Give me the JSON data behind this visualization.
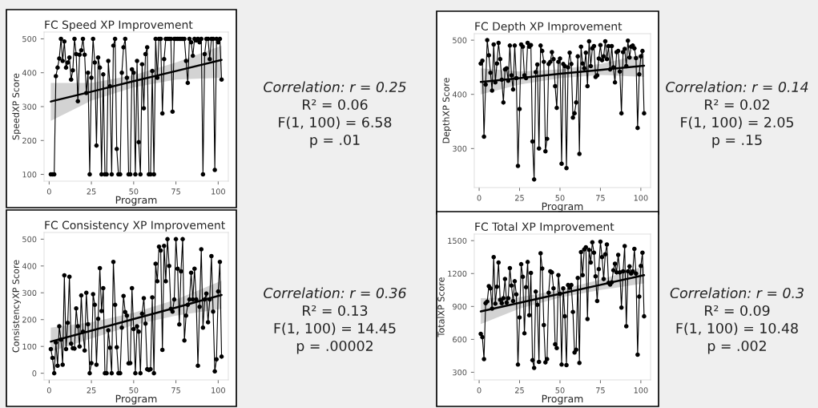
{
  "chart_data": [
    {
      "type": "line",
      "title": "FC Speed XP Improvement",
      "xlabel": "Program",
      "ylabel": "SpeedXP Score",
      "xlim": [
        -3,
        106
      ],
      "ylim": [
        80,
        520
      ],
      "xticks": [
        0,
        25,
        50,
        75,
        100
      ],
      "yticks": [
        100,
        200,
        300,
        400,
        500
      ],
      "grid": false,
      "legend": false,
      "annotations": [
        "Correlation: r = 0.25",
        "R² = 0.06",
        "F(1, 100) = 6.58",
        "p = .01"
      ],
      "series": [
        {
          "color": "#000000",
          "marker": "circle",
          "x": [
            1,
            2,
            3,
            4,
            5,
            6,
            7,
            8,
            9,
            10,
            11,
            12,
            13,
            14,
            15,
            16,
            17,
            18,
            19,
            20,
            21,
            22,
            23,
            24,
            25,
            26,
            27,
            28,
            29,
            30,
            31,
            32,
            33,
            34,
            35,
            36,
            37,
            38,
            39,
            40,
            41,
            42,
            43,
            44,
            45,
            46,
            47,
            48,
            49,
            50,
            51,
            52,
            53,
            54,
            55,
            56,
            57,
            58,
            59,
            60,
            61,
            62,
            63,
            64,
            65,
            66,
            67,
            68,
            69,
            70,
            71,
            72,
            73,
            74,
            75,
            76,
            77,
            78,
            79,
            80,
            81,
            82,
            83,
            84,
            85,
            86,
            87,
            88,
            89,
            90,
            91,
            92,
            93,
            94,
            95,
            96,
            97,
            98,
            99,
            100,
            101,
            102
          ],
          "values": [
            100,
            100,
            100,
            390,
            415,
            442,
            500,
            435,
            492,
            415,
            430,
            445,
            380,
            407,
            500,
            455,
            316,
            453,
            466,
            500,
            453,
            340,
            400,
            100,
            385,
            500,
            430,
            185,
            445,
            415,
            100,
            395,
            100,
            100,
            435,
            360,
            100,
            480,
            500,
            175,
            100,
            100,
            400,
            475,
            500,
            385,
            100,
            100,
            410,
            400,
            100,
            435,
            195,
            100,
            425,
            295,
            455,
            475,
            100,
            100,
            405,
            100,
            500,
            385,
            500,
            500,
            280,
            440,
            500,
            500,
            500,
            500,
            285,
            500,
            500,
            500,
            500,
            500,
            500,
            500,
            435,
            370,
            500,
            490,
            450,
            500,
            495,
            500,
            490,
            500,
            100,
            455,
            500,
            500,
            440,
            500,
            500,
            113,
            500,
            490,
            500,
            380
          ]
        },
        {
          "color": "#000000",
          "marker": "none",
          "x": [
            1,
            25,
            50,
            75,
            102
          ],
          "values": [
            315,
            344,
            375,
            405,
            438
          ],
          "lower": [
            258,
            318,
            357,
            380,
            385
          ],
          "upper": [
            370,
            370,
            393,
            430,
            480
          ]
        }
      ]
    },
    {
      "type": "line",
      "title": "FC Consistency XP Improvement",
      "xlabel": "Program",
      "ylabel": "ConsistencyXP Score",
      "xlim": [
        -3,
        106
      ],
      "ylim": [
        -25,
        525
      ],
      "xticks": [
        0,
        25,
        50,
        75,
        100
      ],
      "yticks": [
        0,
        100,
        200,
        300,
        400,
        500
      ],
      "grid": false,
      "legend": false,
      "annotations": [
        "Correlation: r = 0.36",
        "R² = 0.13",
        "F(1, 100) = 14.45",
        "p = .00002"
      ],
      "series": [
        {
          "color": "#000000",
          "marker": "circle",
          "x": [
            1,
            2,
            3,
            4,
            5,
            6,
            7,
            8,
            9,
            10,
            11,
            12,
            13,
            14,
            15,
            16,
            17,
            18,
            19,
            20,
            21,
            22,
            23,
            24,
            25,
            26,
            27,
            28,
            29,
            30,
            31,
            32,
            33,
            34,
            35,
            36,
            37,
            38,
            39,
            40,
            41,
            42,
            43,
            44,
            45,
            46,
            47,
            48,
            49,
            50,
            51,
            52,
            53,
            54,
            55,
            56,
            57,
            58,
            59,
            60,
            61,
            62,
            63,
            64,
            65,
            66,
            67,
            68,
            69,
            70,
            71,
            72,
            73,
            74,
            75,
            76,
            77,
            78,
            79,
            80,
            81,
            82,
            83,
            84,
            85,
            86,
            87,
            88,
            89,
            90,
            91,
            92,
            93,
            94,
            95,
            96,
            97,
            98,
            99,
            100,
            101,
            102
          ],
          "values": [
            90,
            57,
            0,
            115,
            28,
            175,
            125,
            32,
            365,
            90,
            188,
            360,
            110,
            93,
            92,
            242,
            175,
            100,
            290,
            155,
            85,
            300,
            183,
            0,
            38,
            295,
            255,
            32,
            203,
            392,
            232,
            317,
            0,
            0,
            160,
            95,
            0,
            415,
            255,
            97,
            0,
            0,
            170,
            288,
            228,
            215,
            37,
            38,
            317,
            165,
            0,
            175,
            155,
            0,
            222,
            280,
            185,
            15,
            12,
            15,
            283,
            0,
            408,
            343,
            472,
            458,
            87,
            475,
            343,
            500,
            400,
            240,
            230,
            275,
            500,
            390,
            182,
            380,
            500,
            122,
            215,
            255,
            275,
            375,
            275,
            390,
            275,
            28,
            248,
            462,
            170,
            275,
            297,
            190,
            275,
            437,
            230,
            7,
            52,
            305,
            415,
            62
          ]
        },
        {
          "color": "#000000",
          "marker": "none",
          "x": [
            1,
            25,
            50,
            75,
            102
          ],
          "values": [
            118,
            159,
            202,
            245,
            292
          ],
          "lower": [
            80,
            130,
            180,
            215,
            240
          ],
          "upper": [
            170,
            190,
            225,
            275,
            345
          ]
        }
      ]
    },
    {
      "type": "line",
      "title": "FC Depth XP Improvement",
      "xlabel": "Program",
      "ylabel": "DepthXP Score",
      "xlim": [
        -3,
        106
      ],
      "ylim": [
        228,
        512
      ],
      "xticks": [
        0,
        25,
        50,
        75,
        100
      ],
      "yticks": [
        300,
        400,
        500
      ],
      "grid": false,
      "legend": false,
      "annotations": [
        "Correlation: r = 0.14",
        "R² = 0.02",
        "F(1, 100) = 2.05",
        "p = .15"
      ],
      "series": [
        {
          "color": "#000000",
          "marker": "circle",
          "x": [
            1,
            2,
            3,
            4,
            5,
            6,
            7,
            8,
            9,
            10,
            11,
            12,
            13,
            14,
            15,
            16,
            17,
            18,
            19,
            20,
            21,
            22,
            23,
            24,
            25,
            26,
            27,
            28,
            29,
            30,
            31,
            32,
            33,
            34,
            35,
            36,
            37,
            38,
            39,
            40,
            41,
            42,
            43,
            44,
            45,
            46,
            47,
            48,
            49,
            50,
            51,
            52,
            53,
            54,
            55,
            56,
            57,
            58,
            59,
            60,
            61,
            62,
            63,
            64,
            65,
            66,
            67,
            68,
            69,
            70,
            71,
            72,
            73,
            74,
            75,
            76,
            77,
            78,
            79,
            80,
            81,
            82,
            83,
            84,
            85,
            86,
            87,
            88,
            89,
            90,
            91,
            92,
            93,
            94,
            95,
            96,
            97,
            98,
            99,
            100,
            101,
            102
          ],
          "values": [
            457,
            462,
            322,
            418,
            500,
            472,
            440,
            407,
            492,
            422,
            457,
            495,
            465,
            427,
            385,
            446,
            448,
            425,
            490,
            435,
            409,
            490,
            430,
            268,
            373,
            492,
            488,
            435,
            430,
            495,
            488,
            491,
            313,
            243,
            441,
            455,
            300,
            490,
            480,
            460,
            295,
            318,
            456,
            460,
            478,
            465,
            415,
            375,
            460,
            466,
            272,
            456,
            452,
            264,
            450,
            477,
            456,
            357,
            365,
            385,
            470,
            290,
            488,
            457,
            448,
            477,
            415,
            498,
            452,
            485,
            489,
            432,
            435,
            466,
            491,
            463,
            470,
            498,
            465,
            489,
            446,
            489,
            450,
            422,
            478,
            480,
            442,
            365,
            478,
            484,
            452,
            499,
            468,
            488,
            490,
            485,
            467,
            338,
            437,
            470,
            480,
            365
          ]
        },
        {
          "color": "#000000",
          "marker": "none",
          "x": [
            1,
            25,
            50,
            75,
            102
          ],
          "values": [
            423,
            430,
            438,
            445,
            453
          ],
          "lower": [
            400,
            418,
            430,
            436,
            432
          ],
          "upper": [
            448,
            442,
            446,
            456,
            475
          ]
        }
      ]
    },
    {
      "type": "line",
      "title": "FC Total XP Improvement",
      "xlabel": "Program",
      "ylabel": "TotalXP Score",
      "xlim": [
        -3,
        106
      ],
      "ylim": [
        230,
        1560
      ],
      "xticks": [
        0,
        25,
        50,
        75,
        100
      ],
      "yticks": [
        300,
        600,
        900,
        1200,
        1500
      ],
      "grid": false,
      "legend": false,
      "annotations": [
        "Correlation: r = 0.3",
        "R² = 0.09",
        "F(1, 100) = 10.48",
        "p = .002"
      ],
      "series": [
        {
          "color": "#000000",
          "marker": "circle",
          "x": [
            1,
            2,
            3,
            4,
            5,
            6,
            7,
            8,
            9,
            10,
            11,
            12,
            13,
            14,
            15,
            16,
            17,
            18,
            19,
            20,
            21,
            22,
            23,
            24,
            25,
            26,
            27,
            28,
            29,
            30,
            31,
            32,
            33,
            34,
            35,
            36,
            37,
            38,
            39,
            40,
            41,
            42,
            43,
            44,
            45,
            46,
            47,
            48,
            49,
            50,
            51,
            52,
            53,
            54,
            55,
            56,
            57,
            58,
            59,
            60,
            61,
            62,
            63,
            64,
            65,
            66,
            67,
            68,
            69,
            70,
            71,
            72,
            73,
            74,
            75,
            76,
            77,
            78,
            79,
            80,
            81,
            82,
            83,
            84,
            85,
            86,
            87,
            88,
            89,
            90,
            91,
            92,
            93,
            94,
            95,
            96,
            97,
            98,
            99,
            100,
            101,
            102
          ],
          "values": [
            650,
            620,
            420,
            930,
            945,
            1085,
            1065,
            880,
            1350,
            925,
            1080,
            1300,
            960,
            930,
            975,
            1150,
            935,
            975,
            1250,
            1090,
            950,
            1130,
            1010,
            370,
            800,
            1285,
            1170,
            655,
            1075,
            1305,
            820,
            1205,
            410,
            340,
            1035,
            915,
            395,
            1385,
            1245,
            730,
            390,
            420,
            1025,
            1220,
            1210,
            1065,
            555,
            520,
            1185,
            1015,
            370,
            1065,
            810,
            365,
            1095,
            1070,
            1095,
            850,
            480,
            505,
            1160,
            385,
            1395,
            1185,
            1420,
            1440,
            785,
            1415,
            1300,
            1485,
            1390,
            1175,
            950,
            1240,
            1490,
            1350,
            1150,
            1375,
            1465,
            1115,
            1100,
            1120,
            1230,
            1290,
            1210,
            1370,
            1210,
            890,
            1220,
            1450,
            720,
            1220,
            1265,
            1200,
            1220,
            1425,
            1200,
            460,
            990,
            1270,
            1390,
            810
          ]
        },
        {
          "color": "#000000",
          "marker": "none",
          "x": [
            1,
            25,
            50,
            75,
            102
          ],
          "values": [
            855,
            933,
            1015,
            1097,
            1185
          ],
          "lower": [
            740,
            880,
            980,
            1050,
            1110
          ],
          "upper": [
            975,
            985,
            1050,
            1145,
            1265
          ]
        }
      ]
    }
  ]
}
